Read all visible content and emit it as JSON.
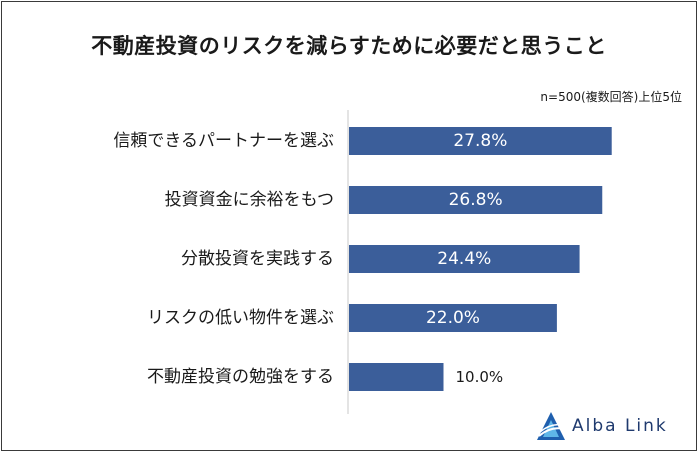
{
  "chart_data": {
    "type": "bar",
    "orientation": "horizontal",
    "title": "不動産投資のリスクを減らすために必要だと思うこと",
    "note": "n=500(複数回答)上位5位",
    "categories": [
      "信頼できるパートナーを選ぶ",
      "投資資金に余裕をもつ",
      "分散投資を実践する",
      "リスクの低い物件を選ぶ",
      "不動産投資の勉強をする"
    ],
    "values": [
      27.8,
      26.8,
      24.4,
      22.0,
      10.0
    ],
    "value_labels": [
      "27.8%",
      "26.8%",
      "24.4%",
      "22.0%",
      "10.0%"
    ],
    "bar_color": "#3b5e9a",
    "xlim": [
      0,
      30
    ]
  },
  "brand": {
    "name": "Alba Link"
  }
}
